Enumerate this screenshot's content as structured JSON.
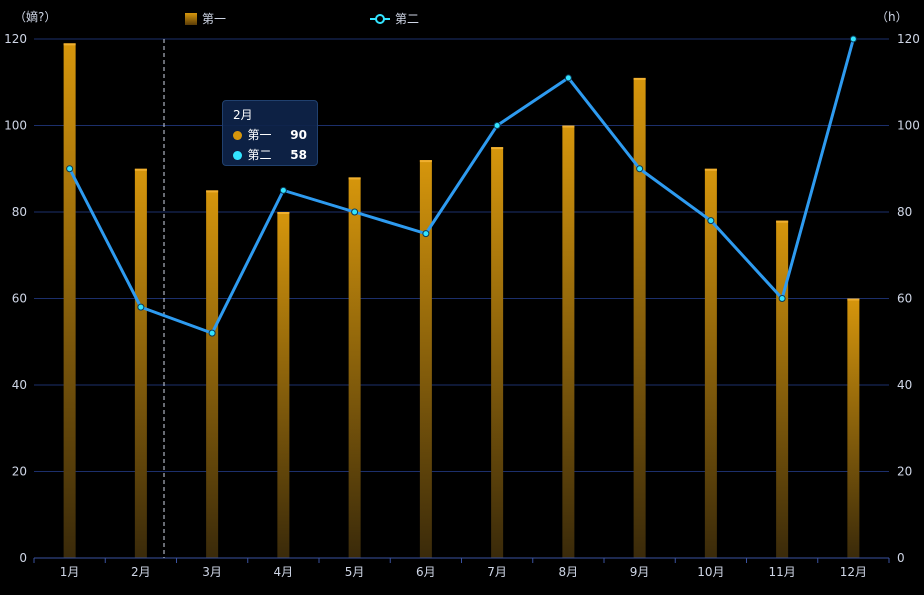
{
  "chart_data": {
    "type": "bar",
    "categories": [
      "1月",
      "2月",
      "3月",
      "4月",
      "5月",
      "6月",
      "7月",
      "8月",
      "9月",
      "10月",
      "11月",
      "12月"
    ],
    "series": [
      {
        "name": "第一",
        "type": "bar",
        "axis": "left",
        "values": [
          119,
          90,
          85,
          80,
          88,
          92,
          95,
          100,
          111,
          90,
          78,
          60
        ]
      },
      {
        "name": "第二",
        "type": "line",
        "axis": "right",
        "values": [
          90,
          58,
          52,
          85,
          80,
          75,
          100,
          111,
          90,
          78,
          60,
          120
        ]
      }
    ],
    "y_left": {
      "label": "（嫡?）",
      "range": [
        0,
        120
      ],
      "ticks": [
        "0",
        "20",
        "40",
        "60",
        "80",
        "100",
        "120"
      ]
    },
    "y_right": {
      "label": "（h）",
      "range": [
        0,
        120
      ],
      "ticks": [
        "0",
        "20",
        "40",
        "60",
        "80",
        "100",
        "120"
      ]
    },
    "grid": true,
    "legend": "top",
    "colors": {
      "bar_top": "#d6960c",
      "bar_bottom": "#3a2a0a",
      "line": "#2e9bf0",
      "point": "#33e4ff",
      "grid": "#1c2f6b"
    }
  },
  "tooltip": {
    "title": "2月",
    "rows": [
      {
        "name": "第一",
        "value": "90",
        "color": "#d6960c"
      },
      {
        "name": "第二",
        "value": "58",
        "color": "#33e4ff"
      }
    ]
  }
}
